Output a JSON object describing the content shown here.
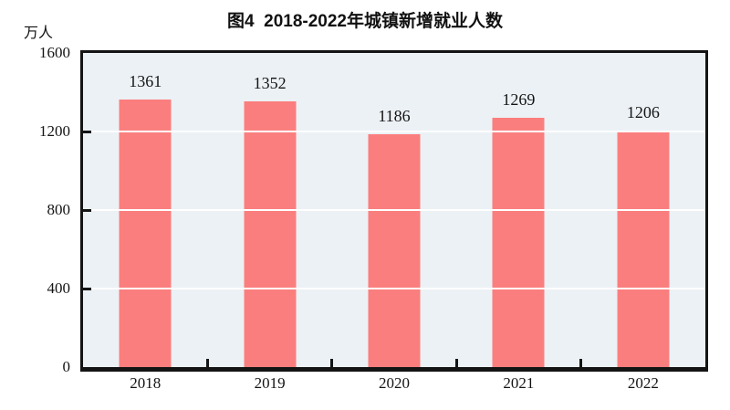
{
  "chart": {
    "title": "图4  2018-2022年城镇新增就业人数",
    "y_unit": "万人"
  },
  "chart_data": {
    "type": "bar",
    "title": "图4  2018-2022年城镇新增就业人数",
    "categories": [
      "2018",
      "2019",
      "2020",
      "2021",
      "2022"
    ],
    "values": [
      1361,
      1352,
      1186,
      1269,
      1206
    ],
    "xlabel": "",
    "ylabel": "万人",
    "ylim": [
      0,
      1600
    ],
    "yticks": [
      0,
      400,
      800,
      1200,
      1600
    ],
    "grid": true,
    "legend": "none",
    "data_labels": true,
    "colors": {
      "bar": "#fb7e7e",
      "plot_background": "#ecf1f5",
      "axis_frame": "#141414",
      "gridline": "#ffffff",
      "text": "#141414"
    }
  }
}
